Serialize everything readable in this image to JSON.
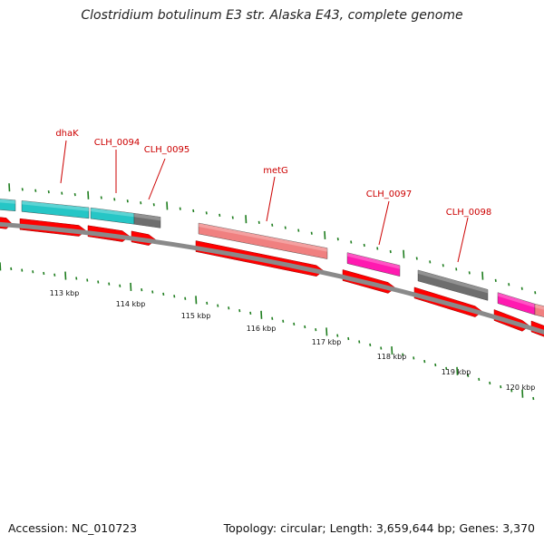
{
  "title": "Clostridium botulinum E3 str. Alaska E43, complete genome",
  "footer": {
    "accession": "Accession: NC_010723",
    "topology": "Topology: circular; Length: 3,659,644 bp; Genes: 3,370"
  },
  "colors": {
    "backbone": "#8a8a8a",
    "tick": "#1e7d1e",
    "cds": "#ff0000",
    "label": "#cc0000",
    "cyan": "#26c6c6",
    "gray": "#6e6e6e",
    "salmon": "#f08080",
    "magenta": "#ff1ab0"
  },
  "gene_labels": [
    "dhaK",
    "CLH_0094",
    "CLH_0095",
    "metG",
    "CLH_0097",
    "CLH_0098"
  ],
  "kbp_labels": [
    "113 kbp",
    "114 kbp",
    "115 kbp",
    "116 kbp",
    "117 kbp",
    "118 kbp",
    "119 kbp",
    "120 kbp"
  ]
}
